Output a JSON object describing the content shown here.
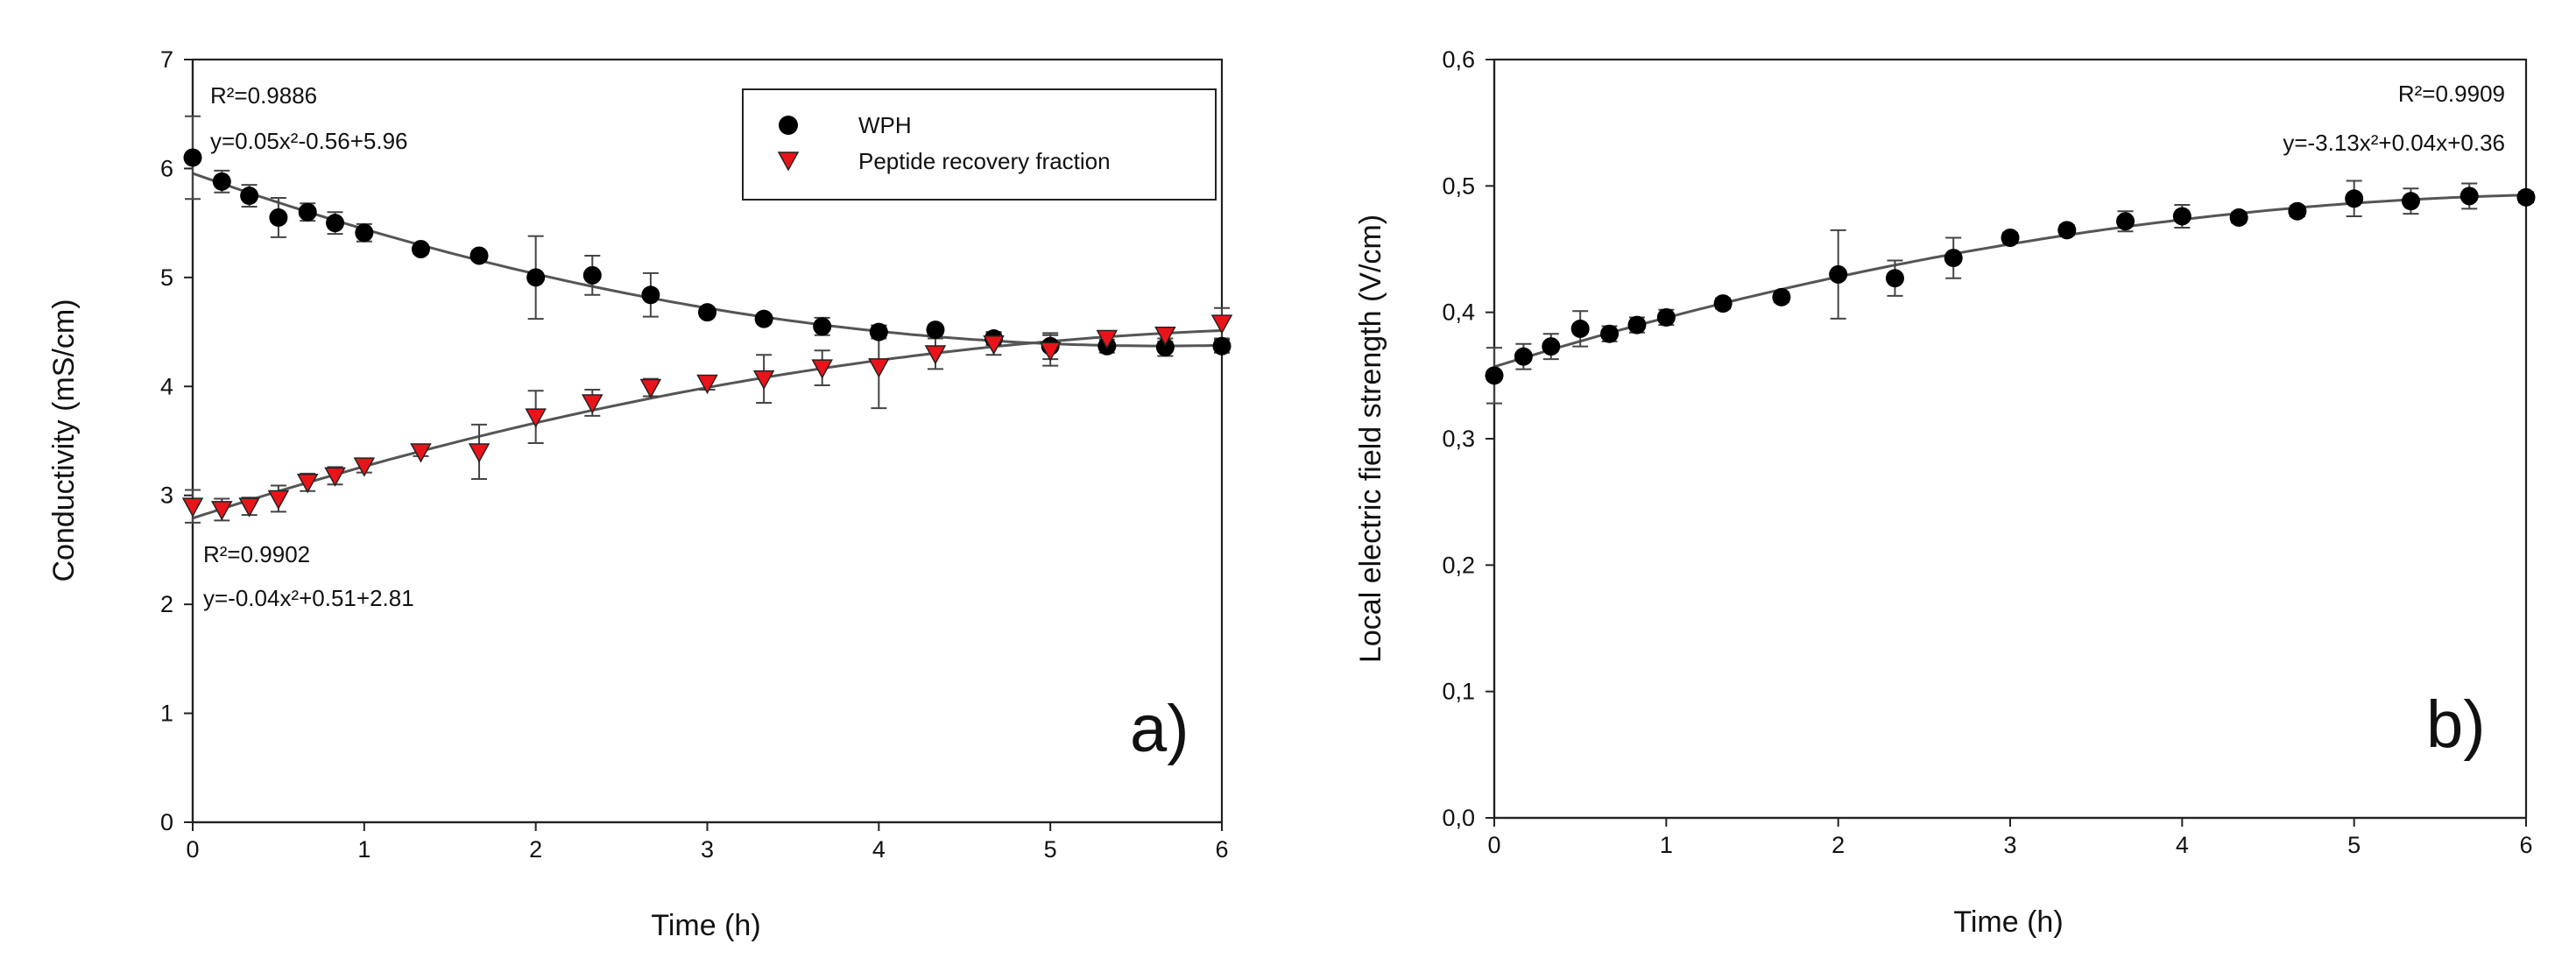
{
  "chart_data": [
    {
      "type": "scatter",
      "panel_label": "a)",
      "xlabel": "Time (h)",
      "ylabel": "Conductivity (mS/cm)",
      "xlim": [
        0,
        6
      ],
      "ylim": [
        0,
        7
      ],
      "xticks": [
        0,
        1,
        2,
        3,
        4,
        5,
        6
      ],
      "yticks": [
        0,
        1,
        2,
        3,
        4,
        5,
        6,
        7
      ],
      "xtick_labels": [
        "0",
        "1",
        "2",
        "3",
        "4",
        "5",
        "6"
      ],
      "ytick_labels": [
        "0",
        "1",
        "2",
        "3",
        "4",
        "5",
        "6",
        "7"
      ],
      "legend_position": "top-right",
      "series": [
        {
          "name": "WPH",
          "marker": "circle",
          "color": "#000000",
          "x": [
            0,
            0.17,
            0.33,
            0.5,
            0.67,
            0.83,
            1.0,
            1.33,
            1.67,
            2.0,
            2.33,
            2.67,
            3.0,
            3.33,
            3.67,
            4.0,
            4.33,
            4.67,
            5.0,
            5.33,
            5.67,
            6.0
          ],
          "y": [
            6.1,
            5.88,
            5.75,
            5.55,
            5.6,
            5.5,
            5.41,
            5.26,
            5.2,
            5.0,
            5.02,
            4.84,
            4.68,
            4.62,
            4.55,
            4.5,
            4.52,
            4.44,
            4.37,
            4.37,
            4.36,
            4.37
          ],
          "error": [
            0.38,
            0.1,
            0.1,
            0.18,
            0.08,
            0.1,
            0.08,
            0.04,
            0.04,
            0.38,
            0.18,
            0.2,
            0.04,
            0.04,
            0.08,
            0.06,
            0.04,
            0.06,
            0.12,
            0.06,
            0.08,
            0.06
          ],
          "annotation": {
            "r2": "R²=0.9886",
            "equation": "y=0.05x²-0.56+5.96"
          }
        },
        {
          "name": "Peptide recovery fraction",
          "marker": "triangle-down",
          "color": "#e8141a",
          "x": [
            0,
            0.17,
            0.33,
            0.5,
            0.67,
            0.83,
            1.0,
            1.33,
            1.67,
            2.0,
            2.33,
            2.67,
            3.0,
            3.33,
            3.67,
            4.0,
            4.33,
            4.67,
            5.0,
            5.33,
            5.67,
            6.0
          ],
          "y": [
            2.9,
            2.87,
            2.9,
            2.97,
            3.12,
            3.18,
            3.27,
            3.4,
            3.4,
            3.72,
            3.85,
            3.99,
            4.03,
            4.07,
            4.17,
            4.18,
            4.3,
            4.39,
            4.33,
            4.44,
            4.47,
            4.58
          ],
          "error": [
            0.15,
            0.1,
            0.08,
            0.12,
            0.08,
            0.08,
            0.06,
            0.04,
            0.25,
            0.24,
            0.12,
            0.08,
            0.06,
            0.22,
            0.16,
            0.38,
            0.14,
            0.1,
            0.14,
            0.06,
            0.06,
            0.14
          ],
          "annotation": {
            "r2": "R²=0.9902",
            "equation": "y=-0.04x²+0.51+2.81"
          }
        }
      ]
    },
    {
      "type": "scatter",
      "panel_label": "b)",
      "xlabel": "Time (h)",
      "ylabel": "Local electric field strength (V/cm)",
      "xlim": [
        0,
        6
      ],
      "ylim": [
        0,
        0.6
      ],
      "xticks": [
        0,
        1,
        2,
        3,
        4,
        5,
        6
      ],
      "yticks": [
        0,
        0.1,
        0.2,
        0.3,
        0.4,
        0.5,
        0.6
      ],
      "xtick_labels": [
        "0",
        "1",
        "2",
        "3",
        "4",
        "5",
        "6"
      ],
      "ytick_labels": [
        "0,0",
        "0,1",
        "0,2",
        "0,3",
        "0,4",
        "0,5",
        "0,6"
      ],
      "series": [
        {
          "name": "Local electric field strength",
          "marker": "circle",
          "color": "#000000",
          "x": [
            0,
            0.17,
            0.33,
            0.5,
            0.67,
            0.83,
            1.0,
            1.33,
            1.67,
            2.0,
            2.33,
            2.67,
            3.0,
            3.33,
            3.67,
            4.0,
            4.33,
            4.67,
            5.0,
            5.33,
            5.67,
            6.0
          ],
          "y": [
            0.35,
            0.365,
            0.373,
            0.387,
            0.383,
            0.39,
            0.396,
            0.407,
            0.412,
            0.43,
            0.427,
            0.443,
            0.459,
            0.465,
            0.472,
            0.476,
            0.475,
            0.48,
            0.49,
            0.488,
            0.492,
            0.491
          ],
          "error": [
            0.022,
            0.01,
            0.01,
            0.014,
            0.006,
            0.006,
            0.006,
            0.004,
            0.004,
            0.035,
            0.014,
            0.016,
            0.004,
            0.004,
            0.008,
            0.009,
            0.004,
            0.004,
            0.014,
            0.01,
            0.01,
            0.004
          ],
          "annotation": {
            "r2": "R²=0.9909",
            "equation": "y=-3.13x²+0.04x+0.36"
          }
        }
      ]
    }
  ]
}
